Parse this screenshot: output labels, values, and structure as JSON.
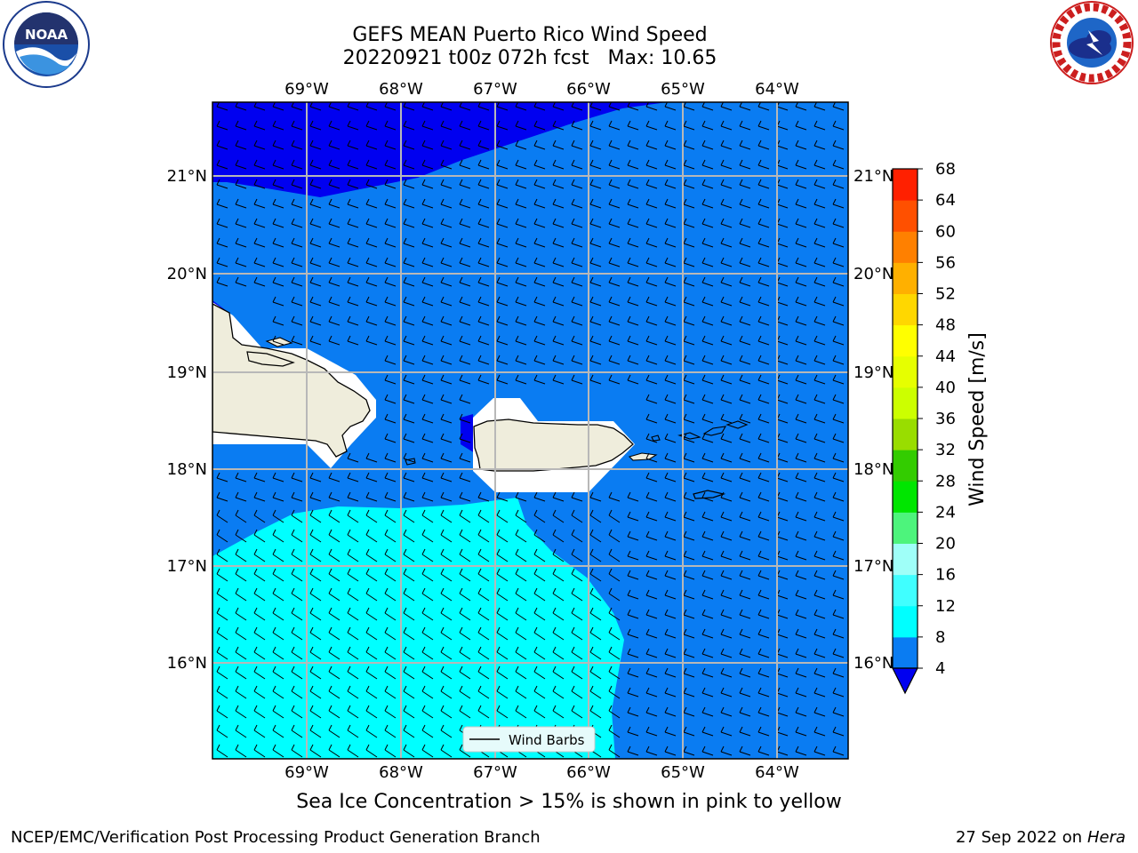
{
  "title": {
    "line1": "GEFS MEAN Puerto Rico Wind Speed",
    "line2": "20220921 t00z 072h fcst   Max: 10.65"
  },
  "map": {
    "lon_labels": [
      "69°W",
      "68°W",
      "67°W",
      "66°W",
      "65°W",
      "64°W"
    ],
    "lat_labels": [
      "21°N",
      "20°N",
      "19°N",
      "18°N",
      "17°N",
      "16°N"
    ],
    "legend_label": "Wind Barbs",
    "colors": {
      "ocean_mid": "#0a7cf2",
      "ocean_low": "#0000f0",
      "ocean_high": "#00ffff",
      "land": "#efeddc",
      "masked": "#ffffff"
    }
  },
  "colorbar": {
    "label": "Wind Speed [m/s]",
    "ticks": [
      "4",
      "8",
      "12",
      "16",
      "20",
      "24",
      "28",
      "32",
      "36",
      "40",
      "44",
      "48",
      "52",
      "56",
      "60",
      "64",
      "68"
    ],
    "colors": [
      "#0a7cf2",
      "#00ffff",
      "#40ffff",
      "#9ffff8",
      "#4df47c",
      "#00e600",
      "#33cc00",
      "#99dd00",
      "#ccff00",
      "#e6ff00",
      "#ffff00",
      "#ffd700",
      "#ffb000",
      "#ff8000",
      "#ff5000",
      "#ff2000",
      "#ff0000"
    ],
    "extend_color": "#0000f0"
  },
  "caption": "Sea Ice Concentration > 15% is shown in pink to yellow",
  "footer": {
    "left": "NCEP/EMC/Verification Post Processing Product Generation Branch",
    "date": "27 Sep 2022 on",
    "host": "Hera"
  },
  "logos": {
    "left": "noaa-logo",
    "right": "nws-logo"
  }
}
